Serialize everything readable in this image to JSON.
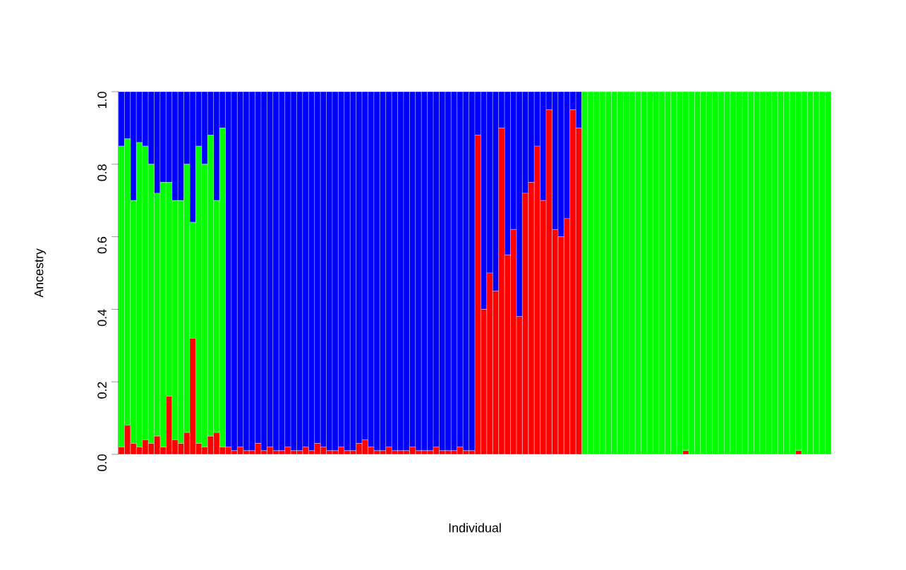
{
  "chart_data": {
    "type": "bar",
    "stacked": true,
    "xlabel": "Individual",
    "ylabel": "Ancestry",
    "categories": [
      null,
      null,
      null,
      null,
      null,
      null,
      null,
      null,
      null,
      null,
      null,
      null,
      null,
      null,
      null,
      null,
      null,
      null,
      null,
      null,
      null,
      null,
      null,
      null,
      null,
      null,
      null,
      null,
      null,
      null,
      null,
      null,
      null,
      null,
      null,
      null,
      null,
      null,
      null,
      null,
      null,
      null,
      null,
      null,
      null,
      null,
      null,
      null,
      null,
      null,
      null,
      null,
      null,
      null,
      null,
      null,
      null,
      null,
      null,
      null,
      null,
      null,
      null,
      null,
      null,
      null,
      null,
      null,
      null,
      null,
      null,
      null,
      null,
      null,
      null,
      null,
      null,
      null,
      null,
      null,
      null,
      null,
      null,
      null,
      null,
      null,
      null,
      null,
      null,
      null,
      null,
      null,
      null,
      null,
      null,
      null,
      null,
      null,
      null,
      null,
      null,
      null,
      null,
      null,
      null,
      null,
      null,
      null,
      null,
      null,
      null,
      null,
      null,
      null,
      null,
      null,
      null,
      null,
      null,
      null
    ],
    "ylim": [
      0,
      1
    ],
    "yticks": [
      {
        "value": 0,
        "label": "0.0"
      },
      {
        "value": 0.2,
        "label": "0.2"
      },
      {
        "value": 0.4,
        "label": "0.4"
      },
      {
        "value": 0.6,
        "label": "0.6"
      },
      {
        "value": 0.8,
        "label": "0.8"
      },
      {
        "value": 1,
        "label": "1.0"
      }
    ],
    "tick_labels": "y",
    "grid": false,
    "series": [
      {
        "color": "#ff0000",
        "values": [
          0.02,
          0.08,
          0.03,
          0.02,
          0.04,
          0.03,
          0.05,
          0.02,
          0.16,
          0.04,
          0.03,
          0.06,
          0.32,
          0.03,
          0.02,
          0.05,
          0.06,
          0.02,
          0.02,
          0.01,
          0.02,
          0.01,
          0.01,
          0.03,
          0.01,
          0.02,
          0.01,
          0.01,
          0.02,
          0.01,
          0.01,
          0.02,
          0.01,
          0.03,
          0.02,
          0.01,
          0.01,
          0.02,
          0.01,
          0.01,
          0.03,
          0.04,
          0.02,
          0.01,
          0.01,
          0.02,
          0.01,
          0.01,
          0.01,
          0.02,
          0.01,
          0.01,
          0.01,
          0.02,
          0.01,
          0.01,
          0.01,
          0.02,
          0.01,
          0.01,
          0.88,
          0.4,
          0.5,
          0.45,
          0.9,
          0.55,
          0.62,
          0.38,
          0.72,
          0.75,
          0.85,
          0.7,
          0.95,
          0.62,
          0.6,
          0.65,
          0.95,
          0.9,
          0,
          0,
          0,
          0,
          0,
          0,
          0,
          0,
          0,
          0,
          0,
          0,
          0,
          0,
          0,
          0,
          0,
          0.01,
          0,
          0,
          0,
          0,
          0,
          0,
          0,
          0,
          0,
          0,
          0,
          0,
          0,
          0,
          0,
          0,
          0,
          0,
          0.01,
          0,
          0,
          0,
          0,
          0
        ]
      },
      {
        "color": "#00ff00",
        "values": [
          0.83,
          0.79,
          0.67,
          0.84,
          0.81,
          0.77,
          0.67,
          0.73,
          0.59,
          0.66,
          0.67,
          0.74,
          0.32,
          0.82,
          0.78,
          0.83,
          0.64,
          0.88,
          0,
          0,
          0,
          0,
          0,
          0,
          0,
          0,
          0,
          0,
          0,
          0,
          0,
          0,
          0,
          0,
          0,
          0,
          0,
          0,
          0,
          0,
          0,
          0,
          0,
          0,
          0,
          0,
          0,
          0,
          0,
          0,
          0,
          0,
          0,
          0,
          0,
          0,
          0,
          0,
          0,
          0,
          0,
          0,
          0,
          0,
          0,
          0,
          0,
          0,
          0,
          0,
          0,
          0,
          0,
          0,
          0,
          0,
          0,
          0,
          1,
          1,
          1,
          1,
          1,
          1,
          1,
          1,
          1,
          1,
          1,
          1,
          1,
          1,
          1,
          1,
          1,
          0.99,
          1,
          1,
          1,
          1,
          1,
          1,
          1,
          1,
          1,
          1,
          1,
          1,
          1,
          1,
          1,
          1,
          1,
          1,
          0.99,
          1,
          1,
          1,
          1,
          1
        ]
      },
      {
        "color": "#0000ff",
        "values": [
          0.15,
          0.13,
          0.3,
          0.14,
          0.15,
          0.2,
          0.28,
          0.25,
          0.25,
          0.3,
          0.3,
          0.2,
          0.36,
          0.15,
          0.2,
          0.12,
          0.3,
          0.1,
          0.98,
          0.99,
          0.98,
          0.99,
          0.99,
          0.97,
          0.99,
          0.98,
          0.99,
          0.99,
          0.98,
          0.99,
          0.99,
          0.98,
          0.99,
          0.97,
          0.98,
          0.99,
          0.99,
          0.98,
          0.99,
          0.99,
          0.97,
          0.96,
          0.98,
          0.99,
          0.99,
          0.98,
          0.99,
          0.99,
          0.99,
          0.98,
          0.99,
          0.99,
          0.99,
          0.98,
          0.99,
          0.99,
          0.99,
          0.98,
          0.99,
          0.99,
          0.12,
          0.6,
          0.5,
          0.55,
          0.1,
          0.45,
          0.38,
          0.62,
          0.28,
          0.25,
          0.15,
          0.3,
          0.05,
          0.38,
          0.4,
          0.35,
          0.05,
          0.1,
          0,
          0,
          0,
          0,
          0,
          0,
          0,
          0,
          0,
          0,
          0,
          0,
          0,
          0,
          0,
          0,
          0,
          0,
          0,
          0,
          0,
          0,
          0,
          0,
          0,
          0,
          0,
          0,
          0,
          0,
          0,
          0,
          0,
          0,
          0,
          0,
          0,
          0,
          0,
          0,
          0,
          0
        ]
      }
    ]
  }
}
